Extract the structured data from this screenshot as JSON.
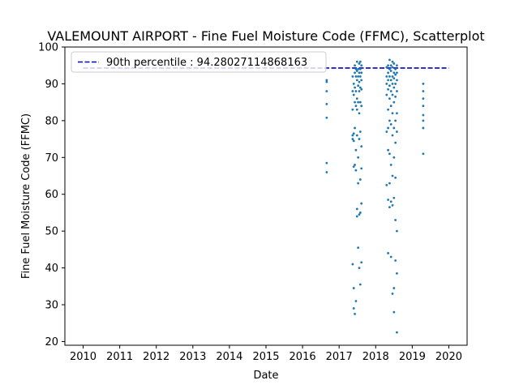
{
  "chart_data": {
    "type": "scatter",
    "title": "VALEMOUNT AIRPORT - Fine Fuel Moisture Code (FFMC), Scatterplot",
    "xlabel": "Date",
    "ylabel": "Fine Fuel Moisture Code (FFMC)",
    "xlim": [
      2009.5,
      2020.5
    ],
    "ylim": [
      19,
      100
    ],
    "x_ticks": [
      "2010",
      "2011",
      "2012",
      "2013",
      "2014",
      "2015",
      "2016",
      "2017",
      "2018",
      "2019",
      "2020"
    ],
    "y_ticks": [
      "20",
      "30",
      "40",
      "50",
      "60",
      "70",
      "80",
      "90",
      "100"
    ],
    "grid": false,
    "legend_position": "top-left",
    "reference_line": {
      "label": "90th percentile : 94.28027114868163",
      "value": 94.28027114868163,
      "x_start": 2010,
      "x_end": 2020,
      "color": "#0000cc"
    },
    "series": [
      {
        "color": "#1f77b4",
        "points": [
          [
            2016.66,
            91
          ],
          [
            2016.66,
            90.5
          ],
          [
            2016.66,
            88
          ],
          [
            2016.66,
            84.5
          ],
          [
            2016.66,
            80.8
          ],
          [
            2016.66,
            68.5
          ],
          [
            2016.66,
            66
          ],
          [
            2017.37,
            92
          ],
          [
            2017.37,
            88
          ],
          [
            2017.37,
            83
          ],
          [
            2017.37,
            76
          ],
          [
            2017.37,
            75
          ],
          [
            2017.37,
            41
          ],
          [
            2017.4,
            90
          ],
          [
            2017.4,
            87
          ],
          [
            2017.4,
            76.5
          ],
          [
            2017.4,
            74.5
          ],
          [
            2017.4,
            67.5
          ],
          [
            2017.4,
            34.5
          ],
          [
            2017.4,
            29
          ],
          [
            2017.43,
            95
          ],
          [
            2017.43,
            93
          ],
          [
            2017.43,
            89
          ],
          [
            2017.43,
            85
          ],
          [
            2017.43,
            78
          ],
          [
            2017.43,
            68
          ],
          [
            2017.43,
            27.5
          ],
          [
            2017.46,
            94
          ],
          [
            2017.46,
            92
          ],
          [
            2017.46,
            88
          ],
          [
            2017.46,
            84
          ],
          [
            2017.46,
            72
          ],
          [
            2017.46,
            66.5
          ],
          [
            2017.46,
            31
          ],
          [
            2017.49,
            96
          ],
          [
            2017.49,
            93.5
          ],
          [
            2017.49,
            91
          ],
          [
            2017.49,
            86
          ],
          [
            2017.49,
            83
          ],
          [
            2017.49,
            76
          ],
          [
            2017.49,
            56
          ],
          [
            2017.49,
            54
          ],
          [
            2017.52,
            94
          ],
          [
            2017.52,
            92
          ],
          [
            2017.52,
            89.5
          ],
          [
            2017.52,
            85
          ],
          [
            2017.52,
            70
          ],
          [
            2017.52,
            63
          ],
          [
            2017.52,
            45.5
          ],
          [
            2017.55,
            95.5
          ],
          [
            2017.55,
            93
          ],
          [
            2017.55,
            90.5
          ],
          [
            2017.55,
            88
          ],
          [
            2017.55,
            82
          ],
          [
            2017.55,
            75
          ],
          [
            2017.55,
            54.5
          ],
          [
            2017.55,
            40
          ],
          [
            2017.58,
            96
          ],
          [
            2017.58,
            94
          ],
          [
            2017.58,
            92
          ],
          [
            2017.58,
            89
          ],
          [
            2017.58,
            85
          ],
          [
            2017.58,
            77
          ],
          [
            2017.58,
            64
          ],
          [
            2017.58,
            55
          ],
          [
            2017.58,
            35.5
          ],
          [
            2017.61,
            95
          ],
          [
            2017.61,
            93
          ],
          [
            2017.61,
            91
          ],
          [
            2017.61,
            88.5
          ],
          [
            2017.61,
            84
          ],
          [
            2017.61,
            73
          ],
          [
            2017.61,
            67
          ],
          [
            2017.61,
            57.5
          ],
          [
            2017.61,
            41.5
          ],
          [
            2018.3,
            94.5
          ],
          [
            2018.3,
            92
          ],
          [
            2018.3,
            90
          ],
          [
            2018.3,
            87
          ],
          [
            2018.3,
            77
          ],
          [
            2018.3,
            62.5
          ],
          [
            2018.34,
            95
          ],
          [
            2018.34,
            93
          ],
          [
            2018.34,
            91
          ],
          [
            2018.34,
            88.5
          ],
          [
            2018.34,
            83
          ],
          [
            2018.34,
            78
          ],
          [
            2018.34,
            72
          ],
          [
            2018.34,
            58.5
          ],
          [
            2018.34,
            44
          ],
          [
            2018.38,
            96.5
          ],
          [
            2018.38,
            94
          ],
          [
            2018.38,
            92
          ],
          [
            2018.38,
            89.5
          ],
          [
            2018.38,
            86
          ],
          [
            2018.38,
            80
          ],
          [
            2018.38,
            71
          ],
          [
            2018.38,
            63
          ],
          [
            2018.38,
            56.5
          ],
          [
            2018.42,
            95
          ],
          [
            2018.42,
            93.5
          ],
          [
            2018.42,
            91
          ],
          [
            2018.42,
            88
          ],
          [
            2018.42,
            84
          ],
          [
            2018.42,
            79
          ],
          [
            2018.42,
            68
          ],
          [
            2018.42,
            58
          ],
          [
            2018.42,
            43
          ],
          [
            2018.46,
            96
          ],
          [
            2018.46,
            94.5
          ],
          [
            2018.46,
            92
          ],
          [
            2018.46,
            90
          ],
          [
            2018.46,
            87
          ],
          [
            2018.46,
            82
          ],
          [
            2018.46,
            76
          ],
          [
            2018.46,
            65
          ],
          [
            2018.46,
            57
          ],
          [
            2018.46,
            33
          ],
          [
            2018.5,
            95.5
          ],
          [
            2018.5,
            93
          ],
          [
            2018.5,
            91.5
          ],
          [
            2018.5,
            89
          ],
          [
            2018.5,
            85
          ],
          [
            2018.5,
            78
          ],
          [
            2018.5,
            70
          ],
          [
            2018.5,
            59
          ],
          [
            2018.5,
            34.5
          ],
          [
            2018.5,
            28
          ],
          [
            2018.54,
            94
          ],
          [
            2018.54,
            92.5
          ],
          [
            2018.54,
            90
          ],
          [
            2018.54,
            86.5
          ],
          [
            2018.54,
            80
          ],
          [
            2018.54,
            74
          ],
          [
            2018.54,
            64.5
          ],
          [
            2018.54,
            53
          ],
          [
            2018.54,
            42
          ],
          [
            2018.58,
            95
          ],
          [
            2018.58,
            93
          ],
          [
            2018.58,
            91
          ],
          [
            2018.58,
            88
          ],
          [
            2018.58,
            82
          ],
          [
            2018.58,
            77
          ],
          [
            2018.58,
            50
          ],
          [
            2018.58,
            38.5
          ],
          [
            2018.58,
            22.5
          ],
          [
            2019.3,
            90
          ],
          [
            2019.3,
            88
          ],
          [
            2019.3,
            86
          ],
          [
            2019.3,
            84
          ],
          [
            2019.3,
            81.5
          ],
          [
            2019.3,
            80
          ],
          [
            2019.3,
            78
          ],
          [
            2019.3,
            71
          ]
        ]
      }
    ]
  }
}
